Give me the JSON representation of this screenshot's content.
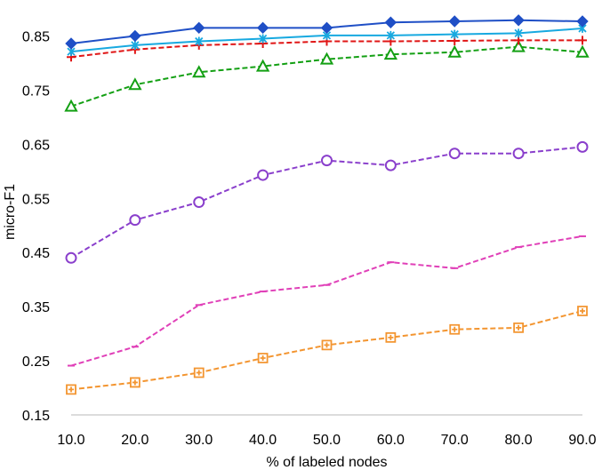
{
  "chart_data": {
    "type": "line",
    "title": "",
    "xlabel": "% of labeled nodes",
    "ylabel": "micro-F1",
    "x": [
      10,
      20,
      30,
      40,
      50,
      60,
      70,
      80,
      90
    ],
    "x_tick_labels": [
      "10.0",
      "20.0",
      "30.0",
      "40.0",
      "50.0",
      "60.0",
      "70.0",
      "80.0",
      "90.0"
    ],
    "xlim": [
      10,
      90
    ],
    "ylim": [
      0.15,
      0.9
    ],
    "y_ticks": [
      0.15,
      0.25,
      0.35,
      0.45,
      0.55,
      0.65,
      0.75,
      0.85
    ],
    "y_tick_labels": [
      "0.15",
      "0.25",
      "0.35",
      "0.45",
      "0.55",
      "0.65",
      "0.75",
      "0.85"
    ],
    "grid": false,
    "legend": "none",
    "series": [
      {
        "values": [
          0.836,
          0.85,
          0.865,
          0.865,
          0.865,
          0.875,
          0.877,
          0.879,
          0.877
        ],
        "color": "#1f4fc6",
        "marker": "diamond",
        "dash": "solid"
      },
      {
        "values": [
          0.821,
          0.833,
          0.84,
          0.845,
          0.851,
          0.851,
          0.853,
          0.855,
          0.864
        ],
        "color": "#17a9e0",
        "marker": "asterisk",
        "dash": "solid"
      },
      {
        "values": [
          0.811,
          0.825,
          0.833,
          0.836,
          0.84,
          0.84,
          0.841,
          0.842,
          0.842
        ],
        "color": "#e01515",
        "marker": "plus",
        "dash": "dashed"
      },
      {
        "values": [
          0.72,
          0.76,
          0.783,
          0.794,
          0.807,
          0.816,
          0.82,
          0.83,
          0.82
        ],
        "color": "#14a014",
        "marker": "triangle",
        "dash": "dashed"
      },
      {
        "values": [
          0.44,
          0.51,
          0.543,
          0.593,
          0.62,
          0.611,
          0.633,
          0.633,
          0.645
        ],
        "color": "#8a3fcc",
        "marker": "circle",
        "dash": "dashed"
      },
      {
        "values": [
          0.241,
          0.276,
          0.353,
          0.378,
          0.39,
          0.432,
          0.421,
          0.46,
          0.48
        ],
        "color": "#e040b8",
        "marker": "dash",
        "dash": "dashed"
      },
      {
        "values": [
          0.197,
          0.21,
          0.228,
          0.255,
          0.279,
          0.293,
          0.308,
          0.311,
          0.342
        ],
        "color": "#f39530",
        "marker": "square-plus",
        "dash": "dashed"
      }
    ]
  }
}
